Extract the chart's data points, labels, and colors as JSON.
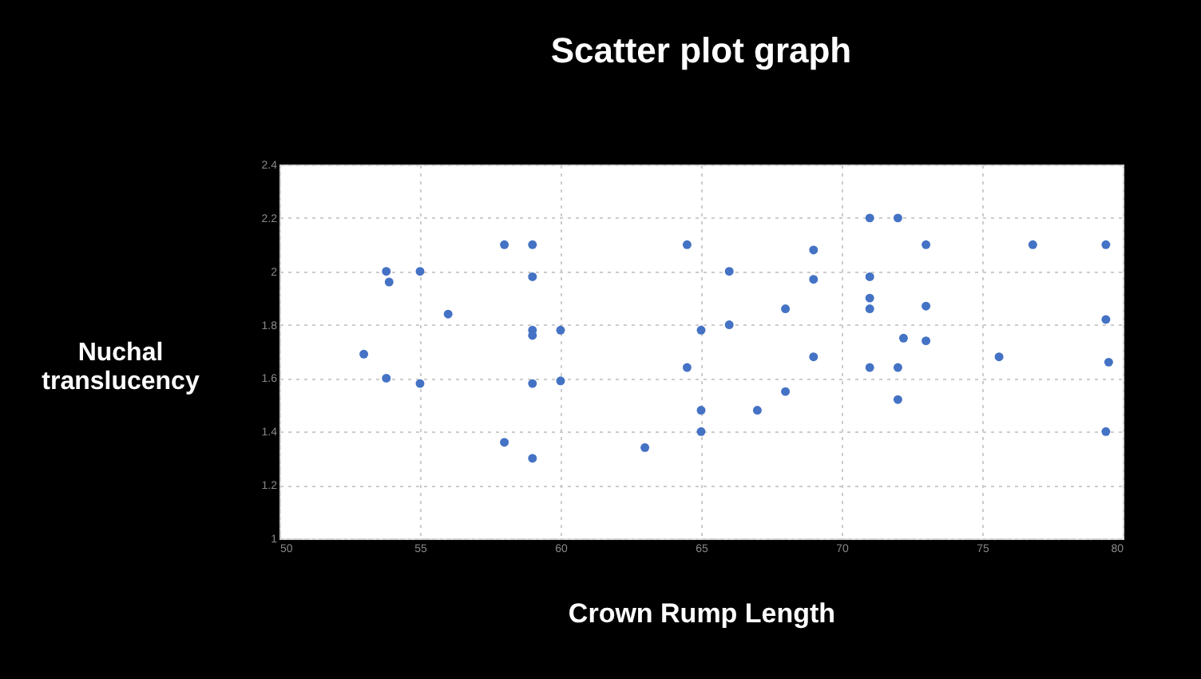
{
  "chart_data": {
    "type": "scatter",
    "title": "Scatter plot graph",
    "xlabel": "Crown Rump Length",
    "ylabel": "Nuchal\ntranslucency",
    "x": [
      53.0,
      53.8,
      53.9,
      53.8,
      55.0,
      55.0,
      56.0,
      58.0,
      58.0,
      59.0,
      59.0,
      59.0,
      59.0,
      59.0,
      59.0,
      60.0,
      60.0,
      64.5,
      64.5,
      65.0,
      65.0,
      65.0,
      66.0,
      66.0,
      63.0,
      67.0,
      68.0,
      68.0,
      69.0,
      69.0,
      69.0,
      71.0,
      71.0,
      71.0,
      71.0,
      71.0,
      72.0,
      72.0,
      72.0,
      72.2,
      73.0,
      73.0,
      73.0,
      75.6,
      76.8,
      79.4,
      79.4,
      79.5,
      79.4
    ],
    "series": [
      {
        "color": "#4472c4",
        "values": [
          1.69,
          2.0,
          1.96,
          1.6,
          2.0,
          1.58,
          1.84,
          2.1,
          1.36,
          2.1,
          1.98,
          1.78,
          1.76,
          1.58,
          1.3,
          1.78,
          1.59,
          2.1,
          1.64,
          1.78,
          1.48,
          1.4,
          2.0,
          1.8,
          1.34,
          1.48,
          1.86,
          1.55,
          2.08,
          1.97,
          1.68,
          2.2,
          1.98,
          1.9,
          1.86,
          1.64,
          2.2,
          1.64,
          1.52,
          1.75,
          2.1,
          1.87,
          1.74,
          1.68,
          2.1,
          2.1,
          1.82,
          1.66,
          1.4
        ]
      }
    ],
    "xlim": [
      50,
      80
    ],
    "xticks": [
      50,
      55,
      60,
      65,
      70,
      75,
      80
    ],
    "ylim": [
      1,
      2.4
    ],
    "yticks": [
      1,
      1.2,
      1.4,
      1.6,
      1.8,
      2,
      2.2,
      2.4
    ],
    "grid": true,
    "marker": "circle"
  }
}
